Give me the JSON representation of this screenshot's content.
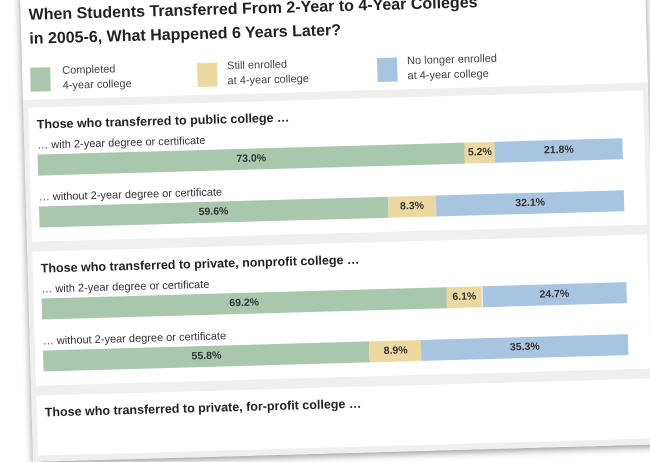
{
  "title_line1": "When Students Transferred From 2-Year to 4-Year Colleges",
  "title_line2": "in 2005-6, What Happened 6 Years Later?",
  "colors": {
    "completed": "#a9c7ad",
    "still_enrolled": "#ecd9a2",
    "no_longer_enrolled": "#a7c4e0"
  },
  "legend": [
    {
      "line1": "Completed",
      "line2": "4-year college"
    },
    {
      "line1": "Still enrolled",
      "line2": "at 4-year college"
    },
    {
      "line1": "No longer enrolled",
      "line2": "at 4-year college"
    }
  ],
  "chart_data": {
    "type": "bar",
    "orientation": "horizontal-stacked-100",
    "series_names": [
      "Completed 4-year college",
      "Still enrolled at 4-year college",
      "No longer enrolled at 4-year college"
    ],
    "groups": [
      {
        "title": "Those who transferred to public college …",
        "rows": [
          {
            "label": "… with 2-year degree or certificate",
            "values": [
              73.0,
              5.2,
              21.8
            ],
            "labels": [
              "73.0%",
              "5.2%",
              "21.8%"
            ]
          },
          {
            "label": "… without 2-year degree or certificate",
            "values": [
              59.6,
              8.3,
              32.1
            ],
            "labels": [
              "59.6%",
              "8.3%",
              "32.1%"
            ]
          }
        ]
      },
      {
        "title": "Those who transferred to private, nonprofit college …",
        "rows": [
          {
            "label": "… with 2-year degree or certificate",
            "values": [
              69.2,
              6.1,
              24.7
            ],
            "labels": [
              "69.2%",
              "6.1%",
              "24.7%"
            ]
          },
          {
            "label": "… without 2-year degree or certificate",
            "values": [
              55.8,
              8.9,
              35.3
            ],
            "labels": [
              "55.8%",
              "8.9%",
              "35.3%"
            ]
          }
        ]
      },
      {
        "title": "Those who transferred to private, for-profit college …",
        "rows": []
      }
    ]
  }
}
